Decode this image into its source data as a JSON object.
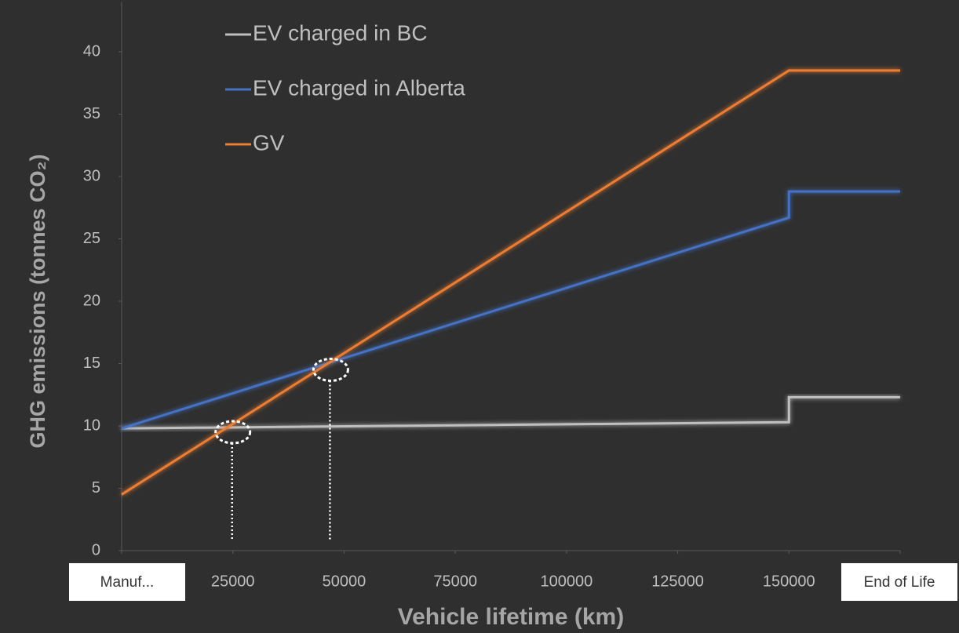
{
  "chart_data": {
    "type": "line",
    "x_label": "Vehicle lifetime (km)",
    "y_label": "GHG emissions (tonnes CO₂)",
    "xlim": [
      0,
      175000
    ],
    "ylim": [
      0,
      44
    ],
    "xticks": [
      {
        "value": 0,
        "label": "Manuf..."
      },
      25000,
      50000,
      75000,
      100000,
      125000,
      150000,
      {
        "value": 175000,
        "label": "End of Life"
      }
    ],
    "yticks": [
      0,
      5,
      10,
      15,
      20,
      25,
      30,
      35,
      40
    ],
    "legend": "top-left",
    "series": [
      {
        "name": "EV charged in BC",
        "color": "#bfbfbf",
        "x": [
          0,
          150000,
          150000,
          175000
        ],
        "values": [
          9.8,
          10.3,
          12.3,
          12.3
        ]
      },
      {
        "name": "EV charged in Alberta",
        "color": "#4472c4",
        "x": [
          0,
          150000,
          150000,
          175000
        ],
        "values": [
          9.8,
          26.7,
          28.8,
          28.8
        ]
      },
      {
        "name": "GV",
        "color": "#ed7d31",
        "x": [
          0,
          150000,
          175000
        ],
        "values": [
          4.5,
          38.5,
          38.5
        ]
      }
    ],
    "markers": [
      {
        "x": 25000,
        "y": 9.5
      },
      {
        "x": 47000,
        "y": 14.5
      }
    ]
  }
}
